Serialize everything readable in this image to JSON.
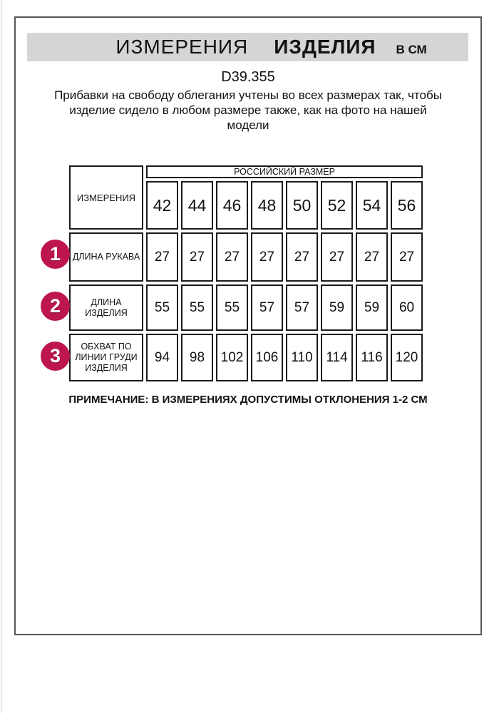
{
  "header": {
    "title_main": "ИЗМЕРЕНИЯ",
    "title_emphasis": "ИЗДЕЛИЯ",
    "title_unit": "В СМ"
  },
  "product": {
    "code": "D39.355",
    "description_lines": [
      "Прибавки на свободу облегания учтены во всех размерах так, чтобы",
      "изделие сидело в любом размере также, как на фото на нашей",
      "модели"
    ]
  },
  "note": "ПРИМЕЧАНИЕ: В ИЗМЕРЕНИЯХ ДОПУСТИМЫ ОТКЛОНЕНИЯ 1-2 СМ",
  "colors": {
    "accent_circle": "#bd164f",
    "title_bar_bg": "#d5d5d5",
    "frame_border": "#565656",
    "table_border": "#1b1b1b"
  },
  "chart_data": {
    "type": "table",
    "title": "ИЗМЕРЕНИЯ ИЗДЕЛИЯ В СМ",
    "corner_header": "ИЗМЕРЕНИЯ",
    "group_header": "РОССИЙСКИЙ РАЗМЕР",
    "sizes": [
      "42",
      "44",
      "46",
      "48",
      "50",
      "52",
      "54",
      "56"
    ],
    "rows": [
      {
        "num": "1",
        "label": "ДЛИНА РУКАВА",
        "label_lines": [
          "ДЛИНА РУКАВА"
        ],
        "values": [
          27,
          27,
          27,
          27,
          27,
          27,
          27,
          27
        ]
      },
      {
        "num": "2",
        "label": "ДЛИНА ИЗДЕЛИЯ",
        "label_lines": [
          "ДЛИНА",
          "ИЗДЕЛИЯ"
        ],
        "values": [
          55,
          55,
          55,
          57,
          57,
          59,
          59,
          60
        ]
      },
      {
        "num": "3",
        "label": "ОБХВАТ ПО ЛИНИИ ГРУДИ ИЗДЕЛИЯ",
        "label_lines": [
          "ОБХВАТ ПО",
          "ЛИНИИ ГРУДИ",
          "ИЗДЕЛИЯ"
        ],
        "values": [
          94,
          98,
          102,
          106,
          110,
          114,
          116,
          120
        ]
      }
    ]
  }
}
